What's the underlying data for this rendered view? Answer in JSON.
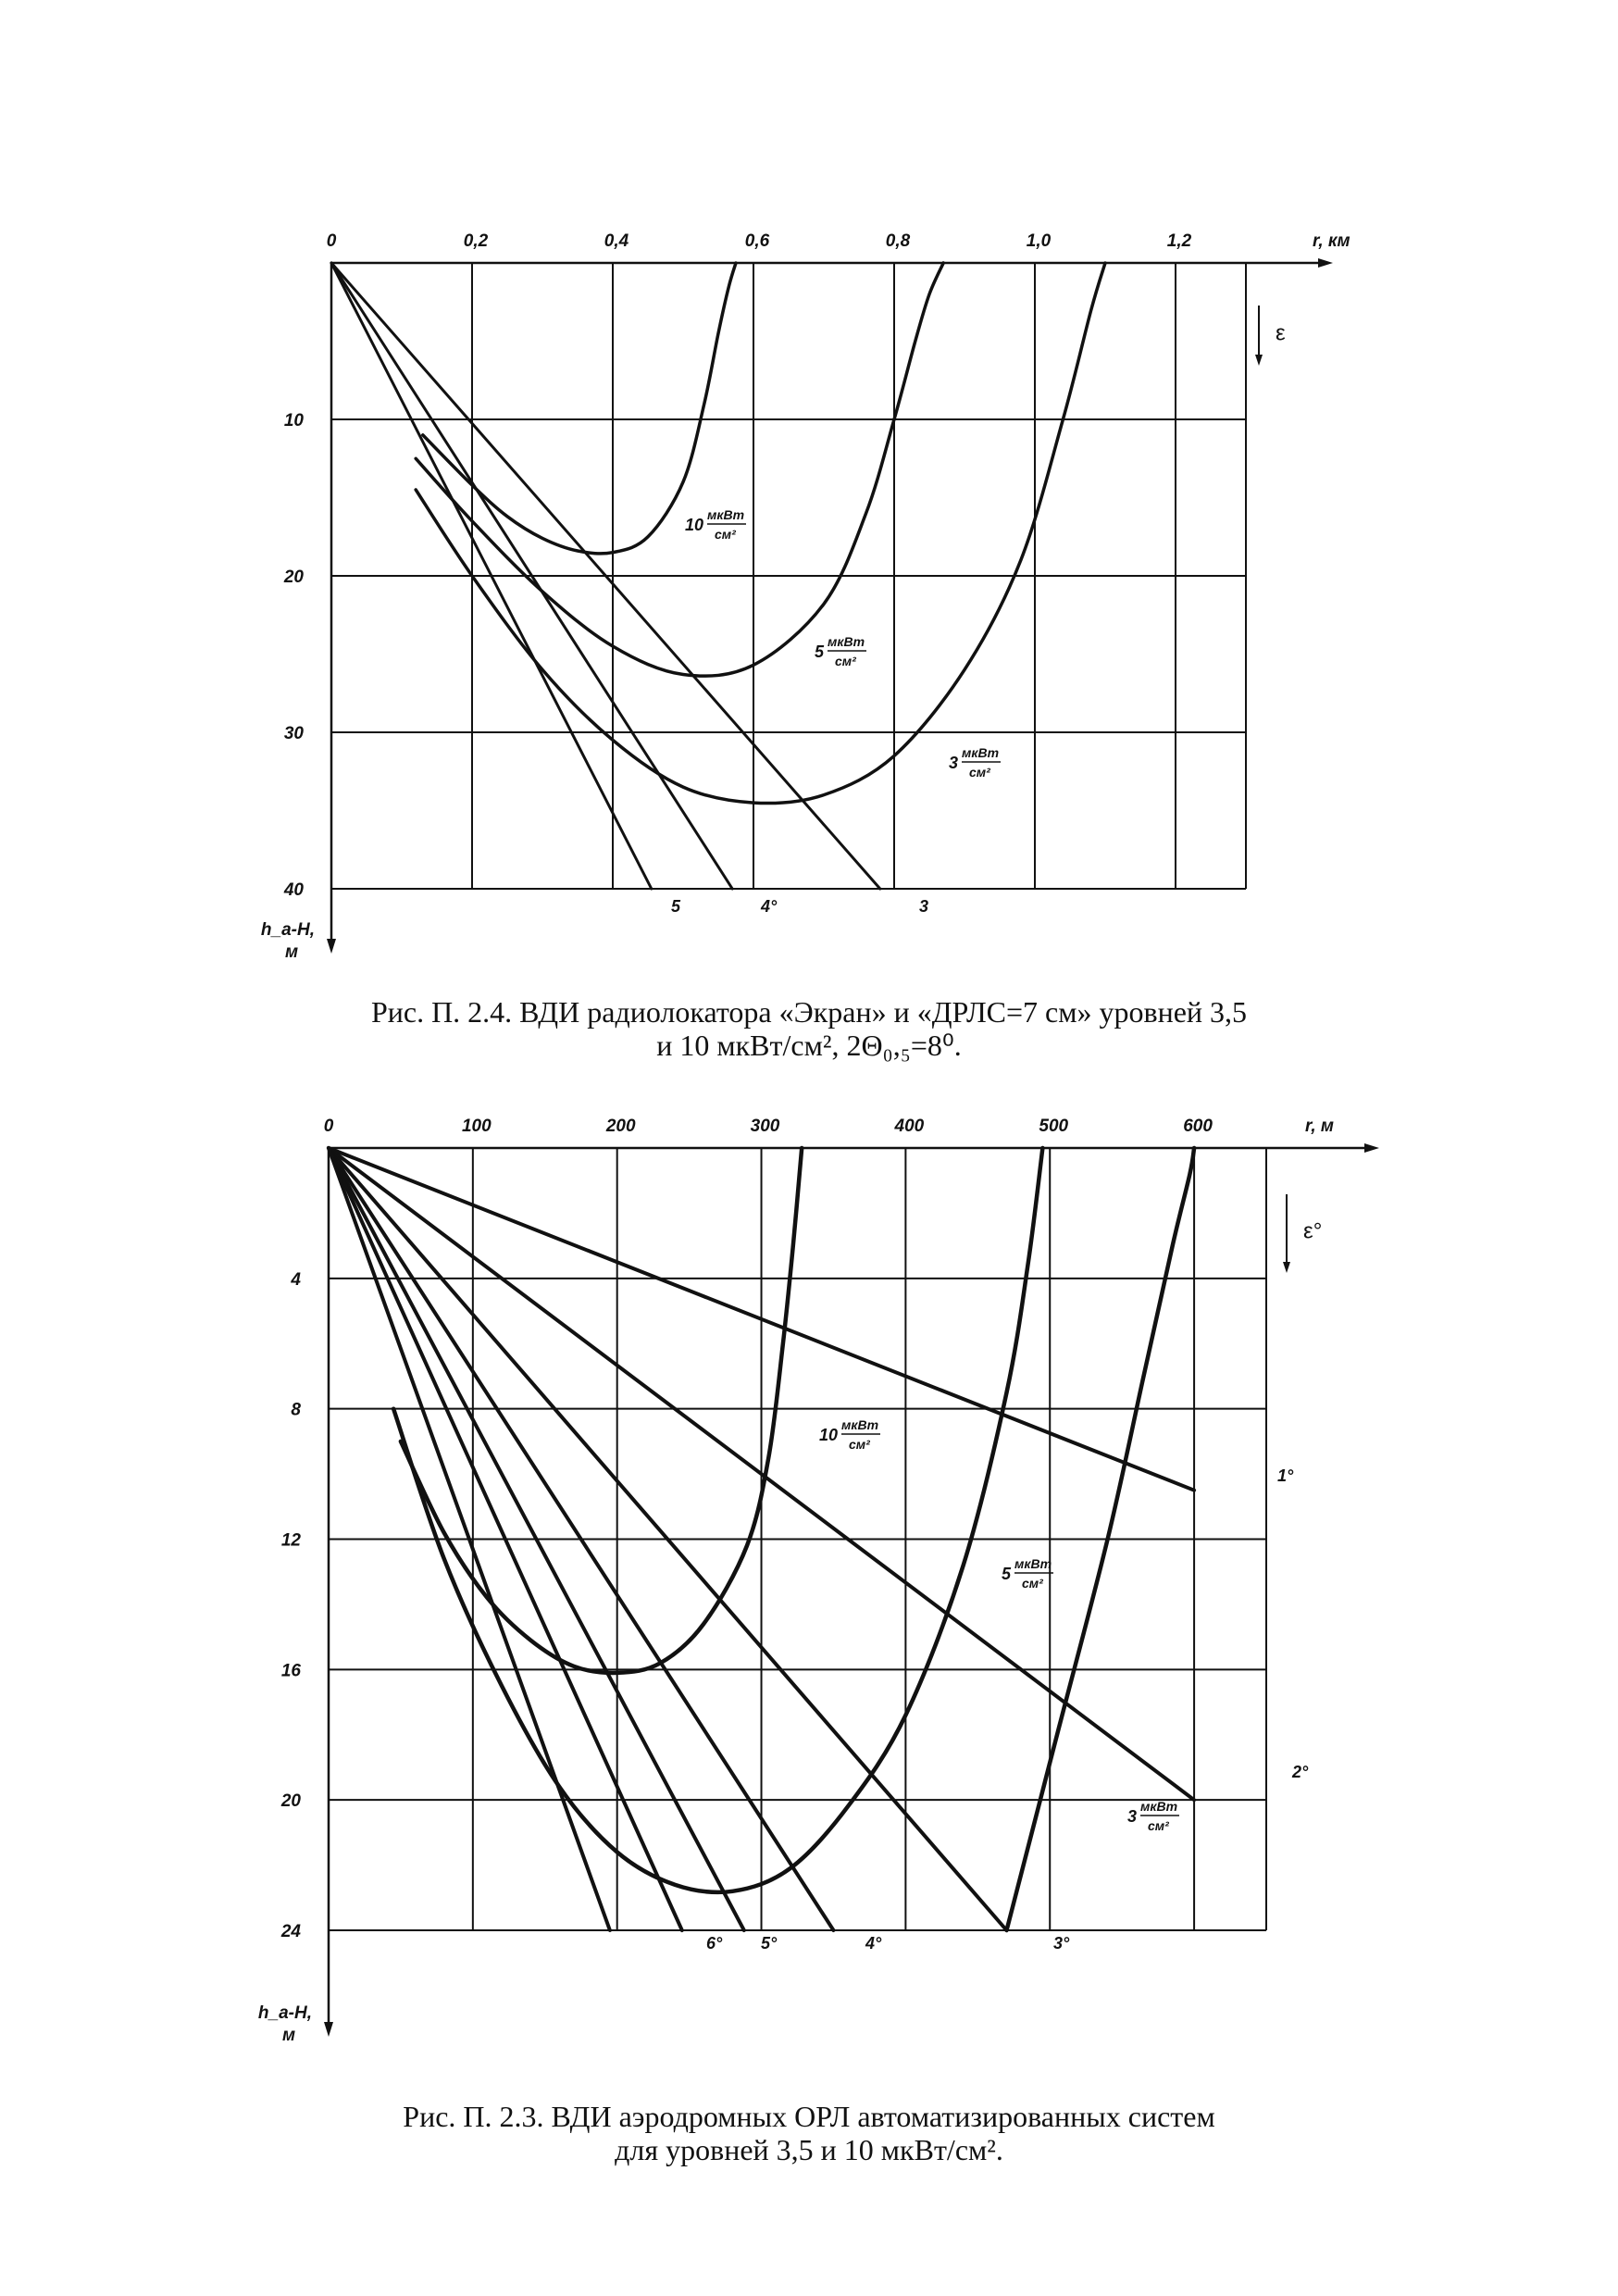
{
  "chart_data": [
    {
      "type": "line",
      "x_axis_label": "r, км",
      "y_axis_label": "h_a-H, м",
      "direction_label": "ε",
      "xlim": [
        0,
        1.3
      ],
      "ylim": [
        0,
        40
      ],
      "y_inverted": true,
      "grid": true,
      "x_ticks": [
        {
          "value": 0,
          "label": "0"
        },
        {
          "value": 0.2,
          "label": "0,2"
        },
        {
          "value": 0.4,
          "label": "0,4"
        },
        {
          "value": 0.6,
          "label": "0,6"
        },
        {
          "value": 0.8,
          "label": "0,8"
        },
        {
          "value": 1.0,
          "label": "1,0"
        },
        {
          "value": 1.2,
          "label": "1,2"
        }
      ],
      "y_ticks": [
        {
          "value": 10,
          "label": "10"
        },
        {
          "value": 20,
          "label": "20"
        },
        {
          "value": 30,
          "label": "30"
        },
        {
          "value": 40,
          "label": "40"
        }
      ],
      "series": [
        {
          "label": "5",
          "kind": "line",
          "x": [
            0,
            0.455
          ],
          "y": [
            0,
            40
          ]
        },
        {
          "label": "4°",
          "kind": "line",
          "x": [
            0,
            0.57
          ],
          "y": [
            0,
            40
          ]
        },
        {
          "label": "3",
          "kind": "line",
          "x": [
            0,
            0.78
          ],
          "y": [
            0,
            40
          ]
        },
        {
          "label_num": "10",
          "label_top": "мкВт",
          "label_bot": "см²",
          "kind": "curve",
          "x": [
            0.13,
            0.2,
            0.25,
            0.3,
            0.35,
            0.4,
            0.45,
            0.5,
            0.53,
            0.55,
            0.565,
            0.575
          ],
          "y": [
            11,
            14.2,
            16.2,
            17.6,
            18.4,
            18.5,
            17.5,
            14,
            9,
            4.5,
            1.5,
            0
          ]
        },
        {
          "label_num": "5",
          "label_top": "мкВт",
          "label_bot": "см²",
          "kind": "curve",
          "x": [
            0.12,
            0.2,
            0.3,
            0.4,
            0.5,
            0.6,
            0.7,
            0.76,
            0.8,
            0.83,
            0.85,
            0.87
          ],
          "y": [
            12.5,
            16.5,
            21,
            24.5,
            26.3,
            25.7,
            21.8,
            16,
            10,
            5,
            2,
            0
          ]
        },
        {
          "label_num": "3",
          "label_top": "мкВт",
          "label_bot": "см²",
          "kind": "curve",
          "x": [
            0.12,
            0.2,
            0.3,
            0.4,
            0.5,
            0.6,
            0.7,
            0.8,
            0.9,
            0.98,
            1.04,
            1.08,
            1.1
          ],
          "y": [
            14.5,
            20,
            26,
            30.5,
            33.5,
            34.5,
            34,
            31.5,
            26,
            19,
            10,
            3,
            0
          ]
        }
      ]
    },
    {
      "type": "line",
      "x_axis_label": "r, м",
      "y_axis_label": "h_a-H, м",
      "direction_label": "ε°",
      "xlim": [
        0,
        650
      ],
      "ylim": [
        0,
        24
      ],
      "y_inverted": true,
      "grid": true,
      "x_ticks": [
        {
          "value": 0,
          "label": "0"
        },
        {
          "value": 100,
          "label": "100"
        },
        {
          "value": 200,
          "label": "200"
        },
        {
          "value": 300,
          "label": "300"
        },
        {
          "value": 400,
          "label": "400"
        },
        {
          "value": 500,
          "label": "500"
        },
        {
          "value": 600,
          "label": "600"
        }
      ],
      "y_ticks": [
        {
          "value": 4,
          "label": "4"
        },
        {
          "value": 8,
          "label": "8"
        },
        {
          "value": 12,
          "label": "12"
        },
        {
          "value": 16,
          "label": "16"
        },
        {
          "value": 20,
          "label": "20"
        },
        {
          "value": 24,
          "label": "24"
        }
      ],
      "series": [
        {
          "label": "1°",
          "kind": "line",
          "x": [
            0,
            600
          ],
          "y": [
            0,
            10.5
          ]
        },
        {
          "label": "2°",
          "kind": "line",
          "x": [
            0,
            600
          ],
          "y": [
            0,
            20
          ]
        },
        {
          "label": "3°",
          "kind": "line",
          "x": [
            0,
            470
          ],
          "y": [
            0,
            24
          ]
        },
        {
          "label": "4°",
          "kind": "line",
          "x": [
            0,
            350
          ],
          "y": [
            0,
            24
          ]
        },
        {
          "label": "5°",
          "kind": "line",
          "x": [
            0,
            288
          ],
          "y": [
            0,
            24
          ]
        },
        {
          "label": "6°",
          "kind": "line",
          "x": [
            0,
            245
          ],
          "y": [
            0,
            24
          ]
        },
        {
          "label": "",
          "kind": "line",
          "x": [
            0,
            195
          ],
          "y": [
            0,
            24
          ]
        },
        {
          "label_num": "10",
          "label_top": "мкВт",
          "label_bot": "см²",
          "kind": "curve",
          "x": [
            50,
            80,
            110,
            140,
            170,
            200,
            230,
            260,
            290,
            305,
            315,
            322,
            328
          ],
          "y": [
            9,
            11.8,
            13.8,
            15.1,
            15.9,
            16.1,
            15.8,
            14.6,
            12.2,
            9.5,
            6,
            3,
            0
          ]
        },
        {
          "label_num": "5",
          "label_top": "мкВт",
          "label_bot": "см²",
          "kind": "curve",
          "x": [
            45,
            80,
            120,
            160,
            200,
            240,
            280,
            320,
            360,
            400,
            440,
            470,
            485,
            495
          ],
          "y": [
            8,
            12.6,
            16.5,
            19.6,
            21.6,
            22.6,
            22.8,
            22.1,
            20.2,
            17.4,
            12.8,
            7.5,
            3.5,
            0
          ]
        },
        {
          "label_num": "3",
          "label_top": "мкВт",
          "label_bot": "см²",
          "kind": "curve",
          "x": [
            470,
            505,
            540,
            565,
            585,
            597,
            600
          ],
          "y": [
            24,
            18,
            12,
            7,
            3,
            0.8,
            0
          ]
        }
      ]
    }
  ],
  "captions": {
    "fig1_line1": "Рис. П. 2.4. ВДИ радиолокатора «Экран» и «ДРЛС=7 см» уровней 3,5",
    "fig1_line2": "и 10 мкВт/см², 2Θ₀,₅=8⁰.",
    "fig2_line1": "Рис.  П. 2.3. ВДИ аэродромных ОРЛ автоматизированных систем",
    "fig2_line2": "для уровней 3,5 и 10 мкВт/см²."
  }
}
